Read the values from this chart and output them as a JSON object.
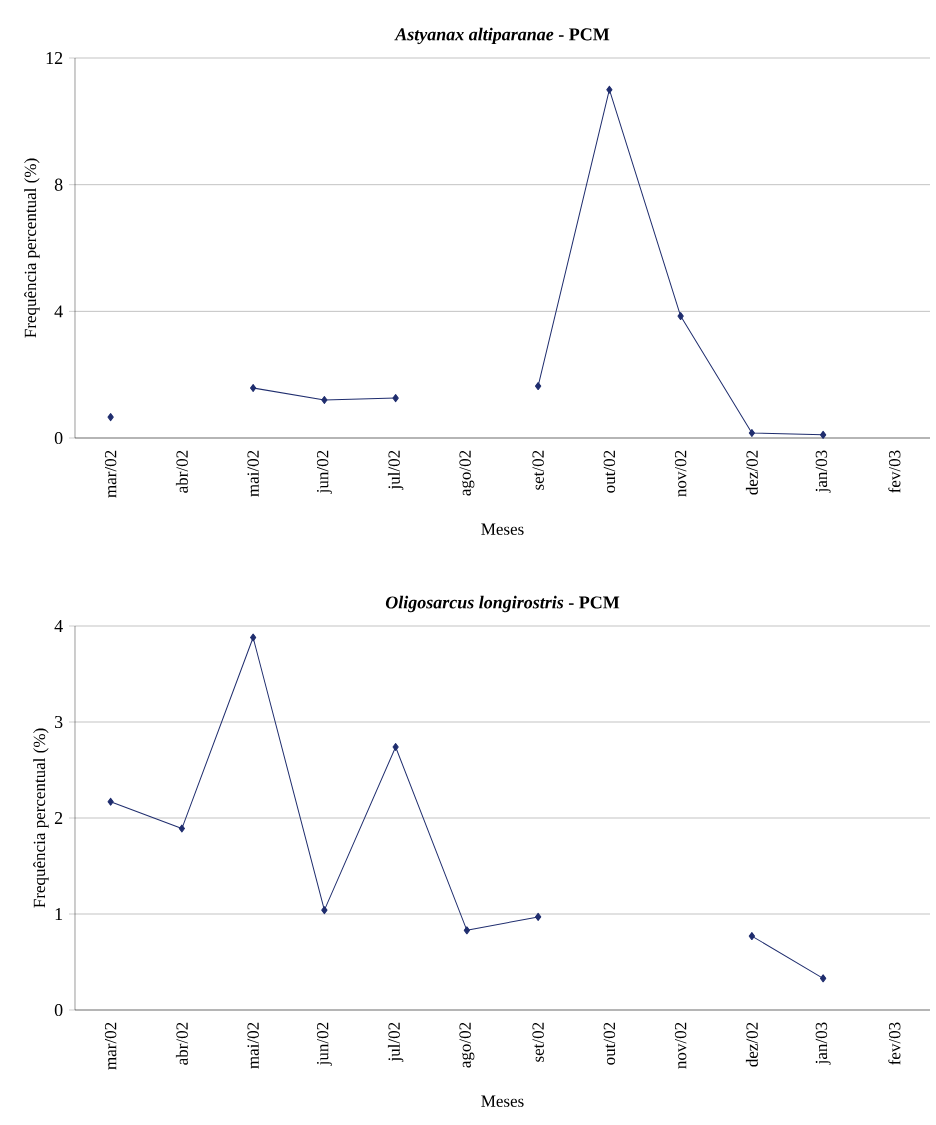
{
  "chart_data": [
    {
      "type": "line",
      "title": "*Astyanax altiparanae* - PCM",
      "xlabel": "Meses",
      "ylabel": "Frequência percentual (%)",
      "categories": [
        "mar/02",
        "abr/02",
        "mai/02",
        "jun/02",
        "jul/02",
        "ago/02",
        "set/02",
        "out/02",
        "nov/02",
        "dez/02",
        "jan/03",
        "fev/03"
      ],
      "values": [
        0.66,
        null,
        1.58,
        1.2,
        1.26,
        null,
        1.64,
        11.0,
        3.85,
        0.16,
        0.1,
        null
      ],
      "color": "#1f2d6e",
      "ylim": [
        0,
        12
      ],
      "yticks": [
        0,
        4,
        8,
        12
      ],
      "grid": "y",
      "marker": "diamond",
      "line_style": "solid"
    },
    {
      "type": "line",
      "title": "*Oligosarcus longirostris* - PCM",
      "xlabel": "Meses",
      "ylabel": "Frequência percentual (%)",
      "categories": [
        "mar/02",
        "abr/02",
        "mai/02",
        "jun/02",
        "jul/02",
        "ago/02",
        "set/02",
        "out/02",
        "nov/02",
        "dez/02",
        "jan/03",
        "fev/03"
      ],
      "values": [
        2.17,
        1.89,
        3.88,
        1.04,
        2.74,
        0.83,
        0.97,
        null,
        null,
        0.77,
        0.33,
        null
      ],
      "color": "#1f2d6e",
      "ylim": [
        0,
        4
      ],
      "yticks": [
        0,
        1,
        2,
        3,
        4
      ],
      "grid": "y",
      "marker": "diamond",
      "line_style": "solid"
    }
  ]
}
